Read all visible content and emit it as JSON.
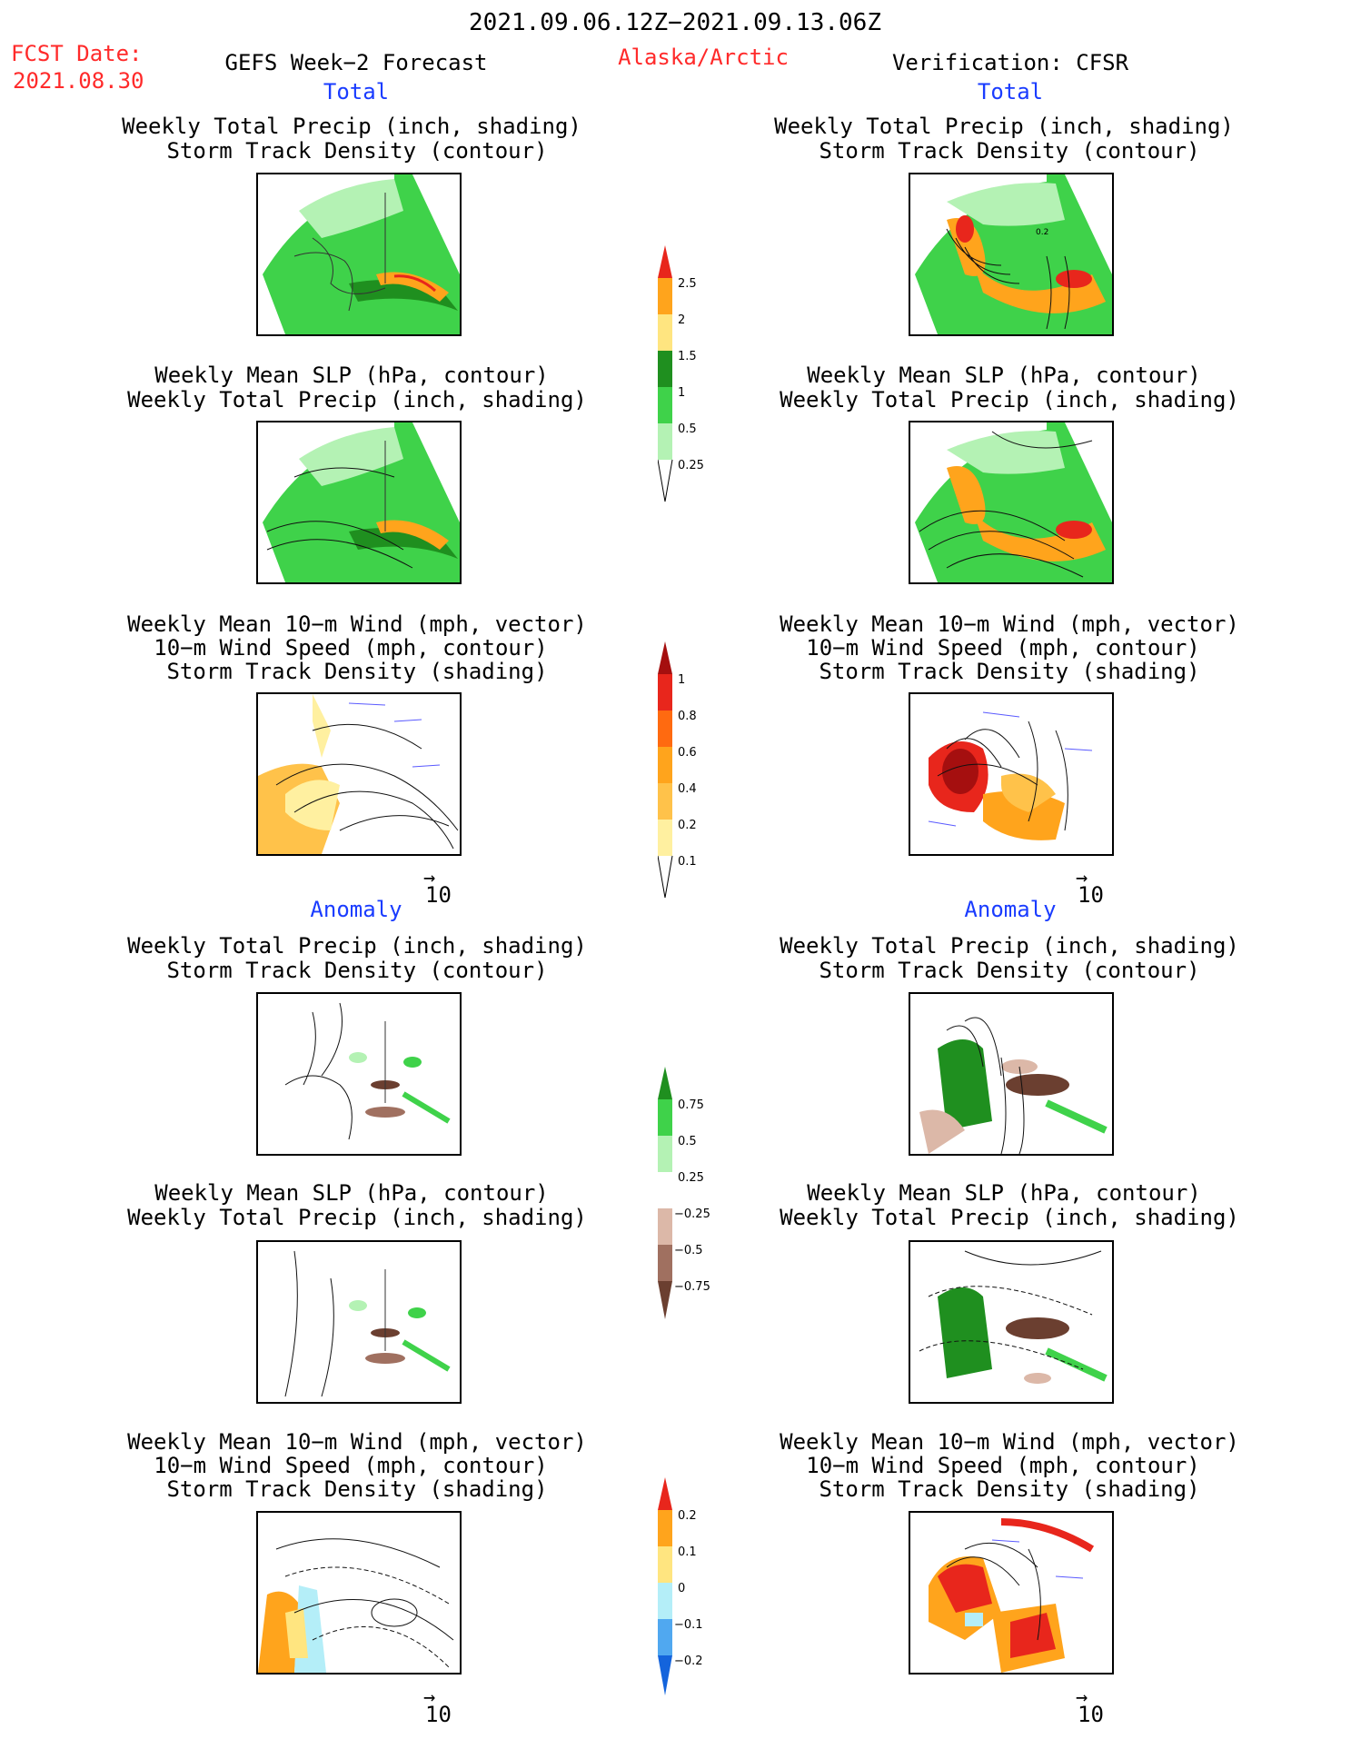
{
  "header": {
    "date_range": "2021.09.06.12Z−2021.09.13.06Z",
    "fcst_label": "FCST Date:",
    "fcst_date": "2021.08.30",
    "forecast_title": "GEFS Week−2 Forecast",
    "region": "Alaska/Arctic",
    "verification": "Verification: CFSR"
  },
  "sections": {
    "total": "Total",
    "anomaly": "Anomaly"
  },
  "titles": {
    "precip_storm": [
      "Weekly Total Precip (inch, shading)",
      "Storm Track Density (contour)"
    ],
    "slp_precip": [
      "Weekly Mean SLP (hPa, contour)",
      "Weekly Total Precip (inch, shading)"
    ],
    "wind_storm": [
      "Weekly Mean 10−m Wind (mph, vector)",
      "10−m Wind Speed (mph, contour)",
      "Storm Track Density (shading)"
    ]
  },
  "vector_ref": "10",
  "colorbars": {
    "precip_total": {
      "labels": [
        "2.5",
        "2",
        "1.5",
        "1",
        "0.5",
        "0.25"
      ],
      "colors": [
        "#e8261c",
        "#ffa41c",
        "#ffe580",
        "#1f8f1f",
        "#3fd24a",
        "#b4f2b4"
      ]
    },
    "storm_total": {
      "labels": [
        "1",
        "0.8",
        "0.6",
        "0.4",
        "0.2",
        "0.1"
      ],
      "colors": [
        "#a50f0f",
        "#e8261c",
        "#ff6a10",
        "#ffa41c",
        "#ffc24a",
        "#fff0a0"
      ]
    },
    "precip_anom": {
      "labels": [
        "0.75",
        "0.5",
        "0.25",
        "−0.25",
        "−0.5",
        "−0.75"
      ],
      "colors": [
        "#1f8f1f",
        "#3fd24a",
        "#b4f2b4",
        "#ffffff",
        "#dcb8a8",
        "#a07060",
        "#6b3f30"
      ]
    },
    "storm_anom": {
      "labels": [
        "0.2",
        "0.1",
        "0",
        "−0.1",
        "−0.2"
      ],
      "colors": [
        "#e8261c",
        "#ffa41c",
        "#ffe580",
        "#b4eef8",
        "#50a8f0",
        "#1464dc"
      ]
    }
  },
  "panel_labels": {
    "right_top_contour": "0.2"
  }
}
